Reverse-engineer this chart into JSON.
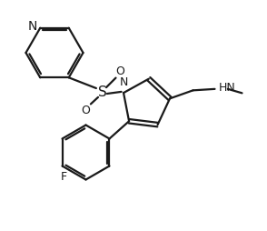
{
  "bg_color": "#ffffff",
  "line_color": "#1a1a1a",
  "line_width": 1.6,
  "font_size": 9,
  "figsize": [
    2.94,
    2.54
  ],
  "dpi": 100,
  "xlim": [
    0,
    9.8
  ],
  "ylim": [
    0,
    8.4
  ]
}
